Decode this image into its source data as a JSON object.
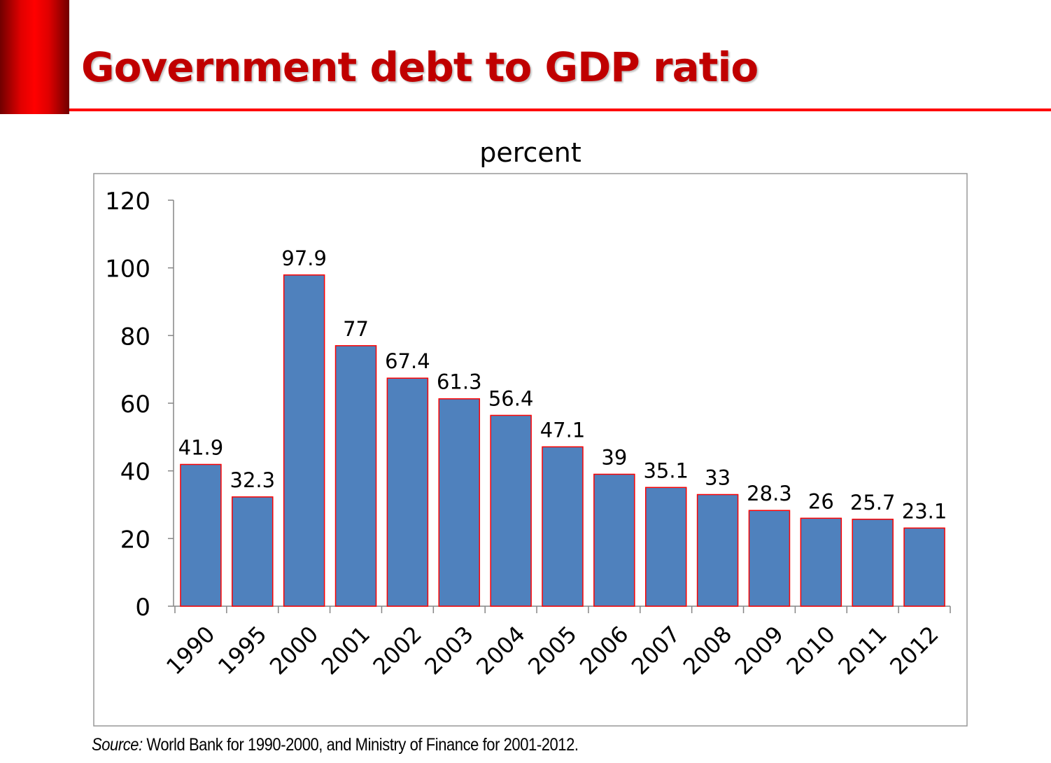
{
  "slide": {
    "title": "Government debt to GDP ratio",
    "source_label": "Source:",
    "source_text": " World Bank for 1990-2000, and Ministry of Finance for 2001-2012."
  },
  "colors": {
    "bar_fill": "#4f81bd",
    "bar_stroke": "#ff0000",
    "title": "#c00000",
    "accent": "#ff0000"
  },
  "chart_data": {
    "type": "bar",
    "title": "percent",
    "xlabel": "",
    "ylabel": "",
    "categories": [
      "1990",
      "1995",
      "2000",
      "2001",
      "2002",
      "2003",
      "2004",
      "2005",
      "2006",
      "2007",
      "2008",
      "2009",
      "2010",
      "2011",
      "2012"
    ],
    "values": [
      41.9,
      32.3,
      97.9,
      77,
      67.4,
      61.3,
      56.4,
      47.1,
      39,
      35.1,
      33,
      28.3,
      26,
      25.7,
      23.1
    ],
    "data_labels": [
      "41.9",
      "32.3",
      "97.9",
      "77",
      "67.4",
      "61.3",
      "56.4",
      "47.1",
      "39",
      "35.1",
      "33",
      "28.3",
      "26",
      "25.7",
      "23.1"
    ],
    "ylim": [
      0,
      120
    ],
    "yticks": [
      "0",
      "20",
      "40",
      "60",
      "80",
      "100",
      "120"
    ],
    "grid": false,
    "legend": "none"
  }
}
